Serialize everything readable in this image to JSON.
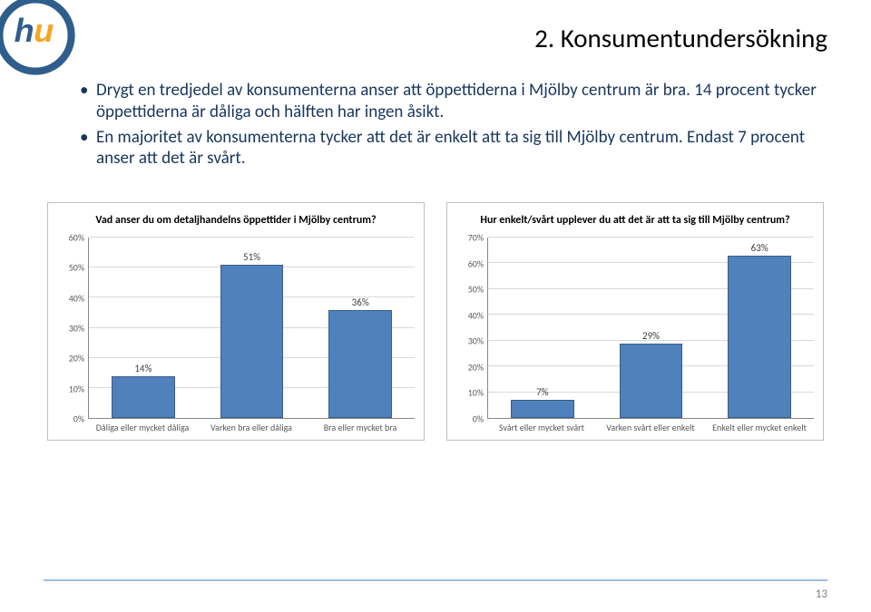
{
  "page": {
    "title": "2. Konsumentundersökning",
    "number": "13"
  },
  "bullets": [
    "Drygt en tredjedel av konsumenterna anser att öppettiderna i Mjölby centrum är bra. 14 procent tycker öppettiderna är dåliga och hälften har ingen åsikt.",
    "En majoritet av konsumenterna tycker att det är enkelt att ta sig till Mjölby centrum. Endast 7 procent anser att det är svårt."
  ],
  "chart1": {
    "type": "bar",
    "title": "Vad anser du om detaljhandelns öppettider i Mjölby centrum?",
    "ymax": 60,
    "ystep": 10,
    "bar_color": "#4f81bd",
    "bar_border": "#385d8a",
    "grid_color": "#d9d9d9",
    "categories": [
      "Dåliga eller mycket dåliga",
      "Varken bra eller dåliga",
      "Bra eller mycket bra"
    ],
    "values": [
      14,
      51,
      36
    ],
    "value_labels": [
      "14%",
      "51%",
      "36%"
    ]
  },
  "chart2": {
    "type": "bar",
    "title": "Hur enkelt/svårt upplever du att det är att ta sig till Mjölby centrum?",
    "ymax": 70,
    "ystep": 10,
    "bar_color": "#4f81bd",
    "bar_border": "#385d8a",
    "grid_color": "#d9d9d9",
    "categories": [
      "Svårt eller mycket svårt",
      "Varken svårt eller enkelt",
      "Enkelt eller mycket enkelt"
    ],
    "values": [
      7,
      29,
      63
    ],
    "value_labels": [
      "7%",
      "29%",
      "63%"
    ]
  },
  "logo": {
    "outer_stroke": "#2f5e8c",
    "inner_fill": "#ffffff",
    "letter_fill": "#2f5e8c",
    "u_fill": "#f5a623"
  }
}
